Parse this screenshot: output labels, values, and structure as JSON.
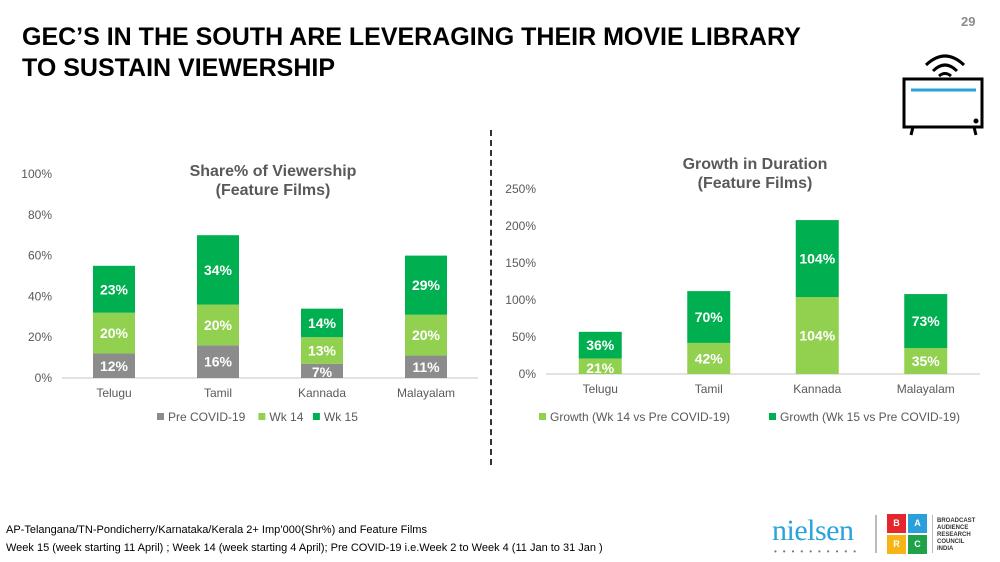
{
  "page": {
    "title_line1": "GEC’S IN THE SOUTH ARE LEVERAGING THEIR MOVIE LIBRARY",
    "title_line2": "TO SUSTAIN VIEWERSHIP",
    "page_number": "29",
    "icon": "tv-wifi-icon"
  },
  "footnotes": {
    "line1": "AP-Telangana/TN-Pondicherry/Karnataka/Kerala 2+ Imp’000(Shr%) and Feature Films",
    "line2": "Week 15 (week starting 11 April) ; Week 14 (week starting 4 April); Pre COVID-19 i.e.Week 2 to Week 4 (11 Jan to 31 Jan )"
  },
  "logos": {
    "nielsen": "nielsen",
    "barc_letters": [
      "B",
      "A",
      "R",
      "C"
    ],
    "barc_text": [
      "BROADCAST",
      "AUDIENCE",
      "RESEARCH",
      "COUNCIL",
      "INDIA"
    ],
    "barc_colors": [
      "#e5262c",
      "#2b9fdc",
      "#f7b416",
      "#1fa24a"
    ]
  },
  "colors": {
    "pre_covid": "#8c8c8c",
    "wk14": "#92d050",
    "wk15": "#00b050",
    "axis_text": "#595959",
    "title_text": "#595959"
  },
  "chart_data": [
    {
      "type": "bar",
      "stacked": true,
      "title": "Share% of Viewership",
      "subtitle": "(Feature Films)",
      "categories": [
        "Telugu",
        "Tamil",
        "Kannada",
        "Malayalam"
      ],
      "series": [
        {
          "name": "Pre COVID-19",
          "values": [
            12,
            16,
            7,
            11
          ],
          "labels": [
            "12%",
            "16%",
            "7%",
            "11%"
          ],
          "color": "#8c8c8c"
        },
        {
          "name": "Wk 14",
          "values": [
            20,
            20,
            13,
            20
          ],
          "labels": [
            "20%",
            "20%",
            "13%",
            "20%"
          ],
          "color": "#92d050"
        },
        {
          "name": "Wk 15",
          "values": [
            23,
            34,
            14,
            29
          ],
          "labels": [
            "23%",
            "34%",
            "14%",
            "29%"
          ],
          "color": "#00b050"
        }
      ],
      "ylim": [
        0,
        100
      ],
      "yticks": [
        "0%",
        "20%",
        "40%",
        "60%",
        "80%",
        "100%"
      ],
      "ytick_values": [
        0,
        20,
        40,
        60,
        80,
        100
      ],
      "grid": false,
      "legend": "bottom",
      "xlabel": "",
      "ylabel": ""
    },
    {
      "type": "bar",
      "stacked": true,
      "title": "Growth in Duration",
      "subtitle": "(Feature Films)",
      "categories": [
        "Telugu",
        "Tamil",
        "Kannada",
        "Malayalam"
      ],
      "series": [
        {
          "name": "Growth (Wk 14 vs Pre COVID-19)",
          "values": [
            21,
            42,
            104,
            35
          ],
          "labels": [
            "21%",
            "42%",
            "104%",
            "35%"
          ],
          "color": "#92d050"
        },
        {
          "name": "Growth (Wk 15 vs Pre COVID-19)",
          "values": [
            36,
            70,
            104,
            73
          ],
          "labels": [
            "36%",
            "70%",
            "104%",
            "73%"
          ],
          "color": "#00b050"
        }
      ],
      "ylim": [
        0,
        250
      ],
      "yticks": [
        "0%",
        "50%",
        "100%",
        "150%",
        "200%",
        "250%"
      ],
      "ytick_values": [
        0,
        50,
        100,
        150,
        200,
        250
      ],
      "grid": false,
      "legend": "bottom",
      "xlabel": "",
      "ylabel": ""
    }
  ]
}
